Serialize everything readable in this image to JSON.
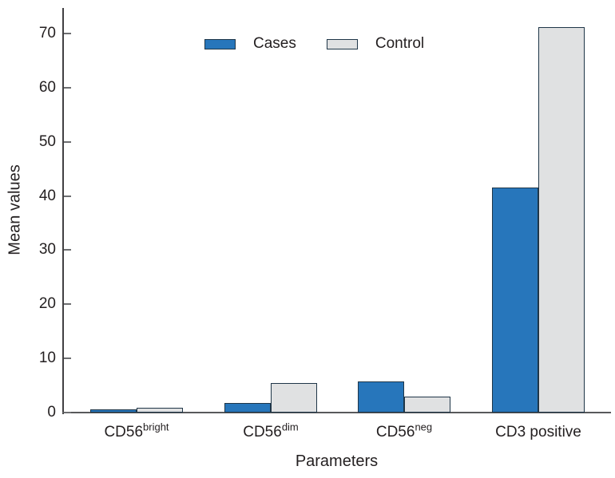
{
  "colors": {
    "background": "#ffffff",
    "cases_fill": "#2776bb",
    "control_fill": "#e0e1e2",
    "bar_border": "#1f3648",
    "x_axis": "#58595b",
    "y_axis": "#414042",
    "tick": "#6d6e71",
    "text": "#231f20"
  },
  "chart_data": {
    "type": "bar",
    "title": "",
    "xlabel": "Parameters",
    "ylabel": "Mean values",
    "categories": [
      "CD56bright",
      "CD56dim",
      "CD56neg",
      "CD3 positive"
    ],
    "categories_rich": [
      {
        "base": "CD56",
        "sup": "bright"
      },
      {
        "base": "CD56",
        "sup": "dim"
      },
      {
        "base": "CD56",
        "sup": "neg"
      },
      {
        "base": "CD3 positive",
        "sup": ""
      }
    ],
    "series": [
      {
        "name": "Cases",
        "color": "#2776bb",
        "values": [
          0.6,
          1.8,
          5.7,
          41.5
        ]
      },
      {
        "name": "Control",
        "color": "#e0e1e2",
        "values": [
          0.9,
          5.5,
          2.9,
          71.2
        ]
      }
    ],
    "ylim": [
      0,
      74.7
    ],
    "yticks": [
      0,
      10,
      20,
      30,
      40,
      50,
      60,
      70
    ],
    "grid": false,
    "legend_position": "top-center",
    "bar_border_color": "#1f3648"
  }
}
